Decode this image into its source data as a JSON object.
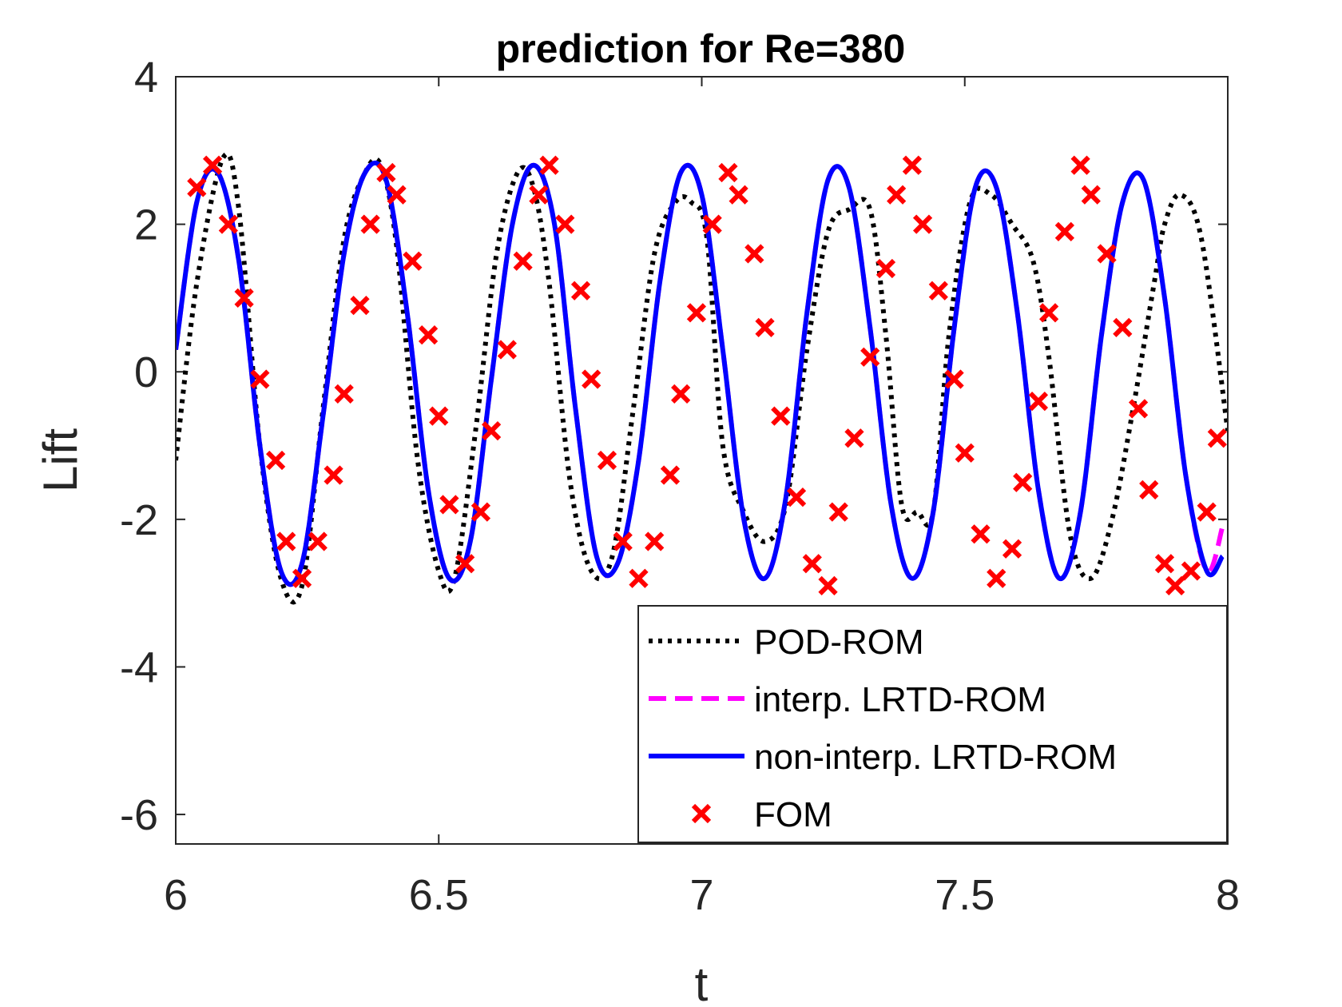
{
  "chart_data": {
    "type": "line",
    "title": "prediction for Re=380",
    "xlabel": "t",
    "ylabel": "Lift",
    "xlim": [
      6,
      8
    ],
    "ylim": [
      -6.4,
      4
    ],
    "xticks": [
      6,
      6.5,
      7,
      7.5,
      8
    ],
    "xtick_labels": [
      "6",
      "6.5",
      "7",
      "7.5",
      "8"
    ],
    "yticks": [
      4,
      2,
      0,
      -2,
      -4,
      -6
    ],
    "ytick_labels": [
      "4",
      "2",
      "0",
      "-2",
      "-4",
      "-6"
    ],
    "grid": false,
    "legend_position": "bottom-right",
    "series": [
      {
        "name": "POD-ROM",
        "color": "#000000",
        "style": "dotted",
        "x": [
          6.0,
          6.04,
          6.09,
          6.12,
          6.16,
          6.2,
          6.24,
          6.28,
          6.32,
          6.36,
          6.39,
          6.42,
          6.46,
          6.5,
          6.53,
          6.57,
          6.61,
          6.65,
          6.68,
          6.71,
          6.75,
          6.79,
          6.83,
          6.87,
          6.91,
          6.95,
          6.98,
          7.01,
          7.04,
          7.08,
          7.12,
          7.16,
          7.2,
          7.24,
          7.28,
          7.32,
          7.35,
          7.38,
          7.41,
          7.44,
          7.47,
          7.51,
          7.55,
          7.59,
          7.63,
          7.66,
          7.7,
          7.74,
          7.78,
          7.82,
          7.86,
          7.88,
          7.91,
          7.95,
          8.0
        ],
        "values": [
          -1.2,
          1.2,
          2.9,
          2.2,
          -1.0,
          -2.8,
          -2.9,
          -0.5,
          1.8,
          2.7,
          2.8,
          1.7,
          -1.2,
          -2.7,
          -2.8,
          -0.8,
          1.6,
          2.7,
          2.5,
          1.2,
          -1.5,
          -2.7,
          -2.5,
          -0.5,
          1.6,
          2.3,
          2.3,
          1.8,
          -1.0,
          -1.9,
          -2.3,
          -1.8,
          0.3,
          1.9,
          2.2,
          2.2,
          0.5,
          -1.8,
          -1.9,
          -1.9,
          0.5,
          2.3,
          2.4,
          2.0,
          1.5,
          0.2,
          -2.2,
          -2.8,
          -2.0,
          -0.5,
          1.2,
          2.0,
          2.4,
          1.8,
          -0.8
        ]
      },
      {
        "name": "interp. LRTD-ROM",
        "color": "#ff00ff",
        "style": "dashed",
        "x": [
          6.0,
          6.04,
          6.08,
          6.12,
          6.16,
          6.2,
          6.24,
          6.28,
          6.32,
          6.36,
          6.4,
          6.44,
          6.48,
          6.52,
          6.56,
          6.6,
          6.64,
          6.68,
          6.72,
          6.76,
          6.8,
          6.84,
          6.88,
          6.92,
          6.96,
          7.0,
          7.04,
          7.08,
          7.12,
          7.16,
          7.2,
          7.24,
          7.28,
          7.32,
          7.36,
          7.4,
          7.44,
          7.48,
          7.52,
          7.56,
          7.6,
          7.64,
          7.68,
          7.72,
          7.76,
          7.8,
          7.84,
          7.88,
          7.92,
          7.96,
          7.99
        ],
        "values": [
          0.3,
          2.3,
          2.7,
          1.5,
          -1.0,
          -2.7,
          -2.6,
          -0.6,
          1.6,
          2.7,
          2.6,
          0.8,
          -1.6,
          -2.8,
          -2.3,
          -0.1,
          2.0,
          2.8,
          2.0,
          -0.5,
          -2.5,
          -2.6,
          -1.2,
          1.2,
          2.7,
          2.4,
          0.3,
          -2.0,
          -2.8,
          -1.7,
          0.8,
          2.6,
          2.5,
          0.6,
          -1.8,
          -2.8,
          -1.9,
          0.6,
          2.5,
          2.5,
          0.8,
          -1.6,
          -2.8,
          -1.9,
          0.5,
          2.3,
          2.6,
          1.0,
          -1.4,
          -2.7,
          -2.1
        ]
      },
      {
        "name": "non-interp. LRTD-ROM",
        "color": "#0000ff",
        "style": "solid",
        "x": [
          6.0,
          6.04,
          6.08,
          6.12,
          6.16,
          6.2,
          6.24,
          6.28,
          6.32,
          6.36,
          6.4,
          6.44,
          6.48,
          6.52,
          6.56,
          6.6,
          6.64,
          6.68,
          6.72,
          6.76,
          6.8,
          6.84,
          6.88,
          6.92,
          6.96,
          7.0,
          7.04,
          7.08,
          7.12,
          7.16,
          7.2,
          7.24,
          7.28,
          7.32,
          7.36,
          7.4,
          7.44,
          7.48,
          7.52,
          7.56,
          7.6,
          7.64,
          7.68,
          7.72,
          7.76,
          7.8,
          7.84,
          7.88,
          7.92,
          7.96,
          7.99
        ],
        "values": [
          0.3,
          2.3,
          2.7,
          1.5,
          -1.0,
          -2.7,
          -2.6,
          -0.6,
          1.6,
          2.7,
          2.6,
          0.8,
          -1.6,
          -2.8,
          -2.3,
          -0.1,
          2.0,
          2.8,
          2.0,
          -0.5,
          -2.5,
          -2.6,
          -1.2,
          1.2,
          2.7,
          2.4,
          0.3,
          -2.0,
          -2.8,
          -1.7,
          0.8,
          2.6,
          2.5,
          0.6,
          -1.8,
          -2.8,
          -1.9,
          0.6,
          2.5,
          2.5,
          0.8,
          -1.6,
          -2.8,
          -1.9,
          0.5,
          2.3,
          2.6,
          1.0,
          -1.4,
          -2.7,
          -2.5
        ]
      },
      {
        "name": "FOM",
        "color": "#ff0000",
        "style": "markers-x",
        "x": [
          6.04,
          6.07,
          6.1,
          6.13,
          6.16,
          6.19,
          6.21,
          6.24,
          6.27,
          6.3,
          6.32,
          6.35,
          6.37,
          6.4,
          6.42,
          6.45,
          6.48,
          6.5,
          6.52,
          6.55,
          6.58,
          6.6,
          6.63,
          6.66,
          6.69,
          6.71,
          6.74,
          6.77,
          6.79,
          6.82,
          6.85,
          6.88,
          6.91,
          6.94,
          6.96,
          6.99,
          7.02,
          7.05,
          7.07,
          7.1,
          7.12,
          7.15,
          7.18,
          7.21,
          7.24,
          7.26,
          7.29,
          7.32,
          7.35,
          7.37,
          7.4,
          7.42,
          7.45,
          7.48,
          7.5,
          7.53,
          7.56,
          7.59,
          7.61,
          7.64,
          7.66,
          7.69,
          7.72,
          7.74,
          7.77,
          7.8,
          7.83,
          7.85,
          7.88,
          7.9,
          7.93,
          7.96,
          7.98
        ],
        "values": [
          2.5,
          2.8,
          2.0,
          1.0,
          -0.1,
          -1.2,
          -2.3,
          -2.8,
          -2.3,
          -1.4,
          -0.3,
          0.9,
          2.0,
          2.7,
          2.4,
          1.5,
          0.5,
          -0.6,
          -1.8,
          -2.6,
          -1.9,
          -0.8,
          0.3,
          1.5,
          2.4,
          2.8,
          2.0,
          1.1,
          -0.1,
          -1.2,
          -2.3,
          -2.8,
          -2.3,
          -1.4,
          -0.3,
          0.8,
          2.0,
          2.7,
          2.4,
          1.6,
          0.6,
          -0.6,
          -1.7,
          -2.6,
          -2.9,
          -1.9,
          -0.9,
          0.2,
          1.4,
          2.4,
          2.8,
          2.0,
          1.1,
          -0.1,
          -1.1,
          -2.2,
          -2.8,
          -2.4,
          -1.5,
          -0.4,
          0.8,
          1.9,
          2.8,
          2.4,
          1.6,
          0.6,
          -0.5,
          -1.6,
          -2.6,
          -2.9,
          -2.7,
          -1.9,
          -0.9
        ]
      }
    ]
  }
}
